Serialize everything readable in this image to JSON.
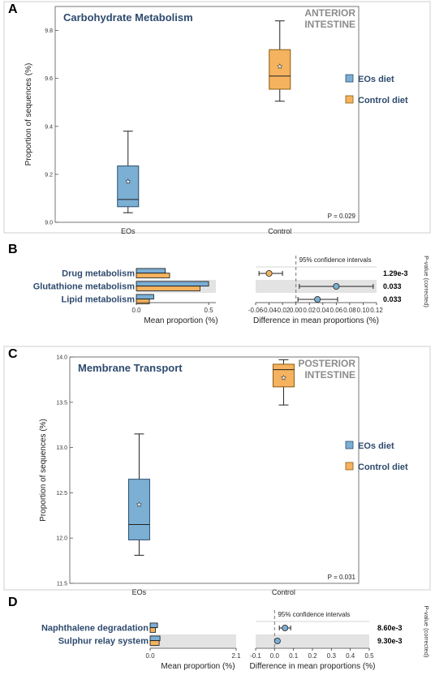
{
  "colors": {
    "eos": "#7bafd4",
    "control": "#f5b35f",
    "eos_stroke": "#2b4d6e",
    "control_stroke": "#8a5a10",
    "title": "#2e4a6e",
    "region": "#8c8c8c",
    "band": "#e3e3e3"
  },
  "chart_data": [
    {
      "panel": "A",
      "type": "box",
      "title": "Carbohydrate Metabolism",
      "region_label": [
        "ANTERIOR",
        "INTESTINE"
      ],
      "ylabel": "Proportion of sequences (%)",
      "ylim": [
        9.0,
        9.9
      ],
      "yticks": [
        "9.0",
        "9.2",
        "9.4",
        "9.6",
        "9.8"
      ],
      "ytick_values": [
        9.0,
        9.2,
        9.4,
        9.6,
        9.8
      ],
      "categories": [
        "EOs",
        "Control"
      ],
      "boxes": [
        {
          "name": "EOs",
          "min": 9.04,
          "q1": 9.065,
          "median": 9.095,
          "q3": 9.235,
          "max": 9.38,
          "mean": 9.17
        },
        {
          "name": "Control",
          "min": 9.505,
          "q1": 9.555,
          "median": 9.61,
          "q3": 9.72,
          "max": 9.84,
          "mean": 9.65
        }
      ],
      "legend": [
        "EOs diet",
        "Control diet"
      ],
      "legend_placement": "right",
      "p_value_text": "P = 0.029"
    },
    {
      "panel": "B",
      "type": "extended-error-bar",
      "features": [
        "Drug metabolism",
        "Glutathione metabolism",
        "Lipid metabolism"
      ],
      "mean_proportions": {
        "eos": [
          0.2,
          0.5,
          0.12
        ],
        "control": [
          0.23,
          0.44,
          0.09
        ]
      },
      "bar_xlim": [
        0,
        0.55
      ],
      "bar_xticks": [
        "0.0",
        "0.5"
      ],
      "bar_xtick_values": [
        0,
        0.5
      ],
      "bar_xlabel": "Mean proportion (%)",
      "differences": [
        {
          "diff": -0.04,
          "ci_low": -0.055,
          "ci_high": -0.02,
          "favors": "control"
        },
        {
          "diff": 0.06,
          "ci_low": 0.005,
          "ci_high": 0.115,
          "favors": "eos"
        },
        {
          "diff": 0.032,
          "ci_low": 0.003,
          "ci_high": 0.062,
          "favors": "eos"
        }
      ],
      "diff_xlim": [
        -0.06,
        0.12
      ],
      "diff_xticks": [
        "-0.06",
        "-0.04",
        "-0.02",
        "0.00",
        "0.02",
        "0.04",
        "0.06",
        "0.08",
        "0.10",
        "0.12"
      ],
      "diff_xtick_values": [
        -0.06,
        -0.04,
        -0.02,
        0.0,
        0.02,
        0.04,
        0.06,
        0.08,
        0.1,
        0.12
      ],
      "diff_xlabel": "Difference in mean proportions (%)",
      "ci_label": "95% confidence intervals",
      "p_values": [
        "1.29e-3",
        "0.033",
        "0.033"
      ],
      "p_axis_label": "P-value (corrected)"
    },
    {
      "panel": "C",
      "type": "box",
      "title": "Membrane Transport",
      "region_label": [
        "POSTERIOR",
        "INTESTINE"
      ],
      "ylabel": "Proportion of sequences (%)",
      "ylim": [
        11.5,
        14.0
      ],
      "yticks": [
        "11.5",
        "12.0",
        "12.5",
        "13.0",
        "13.5",
        "14.0"
      ],
      "ytick_values": [
        11.5,
        12.0,
        12.5,
        13.0,
        13.5,
        14.0
      ],
      "categories": [
        "EOs",
        "Control"
      ],
      "boxes": [
        {
          "name": "EOs",
          "min": 11.81,
          "q1": 11.98,
          "median": 12.15,
          "q3": 12.65,
          "max": 13.15,
          "mean": 12.37
        },
        {
          "name": "Control",
          "min": 13.47,
          "q1": 13.67,
          "median": 13.86,
          "q3": 13.92,
          "max": 13.97,
          "mean": 13.77
        }
      ],
      "legend": [
        "EOs diet",
        "Control diet"
      ],
      "legend_placement": "right",
      "p_value_text": "P = 0.031"
    },
    {
      "panel": "D",
      "type": "extended-error-bar",
      "features": [
        "Naphthalene degradation",
        "Sulphur relay system"
      ],
      "mean_proportions": {
        "eos": [
          0.18,
          0.24
        ],
        "control": [
          0.13,
          0.22
        ]
      },
      "bar_xlim": [
        0,
        2.1
      ],
      "bar_xticks": [
        "0.0",
        "2.1"
      ],
      "bar_xtick_values": [
        0,
        2.1
      ],
      "bar_xlabel": "Mean proportion (%)",
      "differences": [
        {
          "diff": 0.055,
          "ci_low": 0.025,
          "ci_high": 0.085,
          "favors": "eos"
        },
        {
          "diff": 0.015,
          "ci_low": 0.005,
          "ci_high": 0.025,
          "favors": "eos"
        }
      ],
      "diff_xlim": [
        -0.1,
        0.5
      ],
      "diff_xticks": [
        "-0.1",
        "0.0",
        "0.1",
        "0.2",
        "0.3",
        "0.4",
        "0.5"
      ],
      "diff_xtick_values": [
        -0.1,
        0.0,
        0.1,
        0.2,
        0.3,
        0.4,
        0.5
      ],
      "diff_xlabel": "Difference in mean proportions (%)",
      "ci_label": "95% confidence intervals",
      "p_values": [
        "8.60e-3",
        "9.30e-3"
      ],
      "p_axis_label": "P-value (corrected)"
    }
  ]
}
